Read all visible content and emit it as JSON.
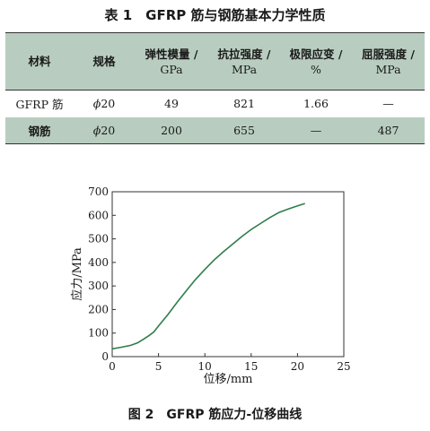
{
  "table": {
    "title": "表 1　GFRP 筋与钢筋基本力学性质",
    "headers": [
      {
        "label": "材料",
        "unit": ""
      },
      {
        "label": "规格",
        "unit": ""
      },
      {
        "label": "弹性模量 /",
        "unit": "GPa"
      },
      {
        "label": "抗拉强度 /",
        "unit": "MPa"
      },
      {
        "label": "极限应变 /",
        "unit": "%"
      },
      {
        "label": "屈服强度 /",
        "unit": "MPa"
      }
    ],
    "rows": [
      {
        "material": "GFRP 筋",
        "spec_symbol": "ϕ",
        "spec_value": "20",
        "modulus": "49",
        "tensile": "821",
        "strain": "1.66",
        "yield": "—"
      },
      {
        "material": "钢筋",
        "spec_symbol": "ϕ",
        "spec_value": "20",
        "modulus": "200",
        "tensile": "655",
        "strain": "—",
        "yield": "487"
      }
    ]
  },
  "figure": {
    "caption": "图 2　GFRP 筋应力-位移曲线"
  },
  "chart_data": {
    "type": "line",
    "title": "",
    "xlabel": "位移/mm",
    "ylabel": "应力/MPa",
    "xlim": [
      0,
      25
    ],
    "ylim": [
      0,
      700
    ],
    "xticks": [
      0,
      5,
      10,
      15,
      20,
      25
    ],
    "yticks": [
      0,
      100,
      200,
      300,
      400,
      500,
      600,
      700
    ],
    "grid": false,
    "line_color": "#2e7d4a",
    "series": [
      {
        "x": [
          0,
          1,
          2,
          2.7,
          3.3,
          4,
          4.5,
          5,
          6,
          7,
          8,
          9,
          10,
          11,
          12,
          13,
          14,
          15,
          16,
          17,
          18,
          19,
          20,
          20.8
        ],
        "y": [
          33,
          40,
          48,
          58,
          72,
          90,
          105,
          130,
          178,
          230,
          280,
          328,
          370,
          410,
          445,
          478,
          510,
          540,
          565,
          590,
          612,
          627,
          640,
          650
        ]
      }
    ]
  }
}
